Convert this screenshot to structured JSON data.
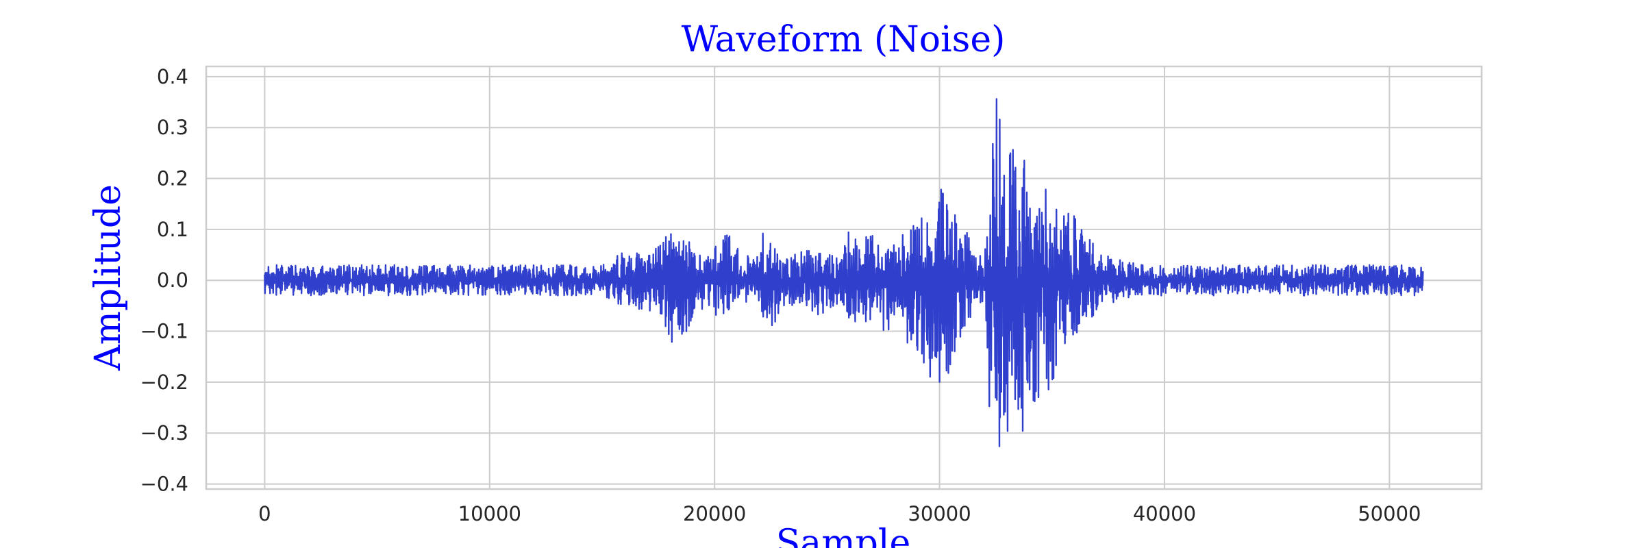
{
  "chart_data": {
    "type": "line",
    "title": "Waveform (Noise)",
    "xlabel": "Sample",
    "ylabel": "Amplitude",
    "xlim": [
      -2600,
      54100
    ],
    "ylim": [
      -0.41,
      0.42
    ],
    "xticks": [
      0,
      10000,
      20000,
      30000,
      40000,
      50000
    ],
    "xtick_labels": [
      "0",
      "10000",
      "20000",
      "30000",
      "40000",
      "50000"
    ],
    "yticks": [
      -0.4,
      -0.3,
      -0.2,
      -0.1,
      0.0,
      0.1,
      0.2,
      0.3,
      0.4
    ],
    "ytick_labels": [
      "−0.4",
      "−0.3",
      "−0.2",
      "−0.1",
      "0.0",
      "0.1",
      "0.2",
      "0.3",
      "0.4"
    ],
    "grid": true,
    "series": [
      {
        "color": "#3040cc",
        "num_samples": 51500,
        "envelope": {
          "x": [
            0,
            2000,
            5000,
            10000,
            15000,
            15800,
            17000,
            17600,
            18000,
            18600,
            19000,
            19600,
            20000,
            20200,
            21000,
            21800,
            22200,
            22600,
            23000,
            24000,
            25000,
            25600,
            26000,
            27000,
            27600,
            28000,
            29000,
            29600,
            30000,
            30400,
            31000,
            31600,
            32000,
            32200,
            32500,
            33000,
            33500,
            34000,
            34500,
            35000,
            35500,
            36000,
            36500,
            37000,
            38000,
            39000,
            40000,
            45000,
            50000,
            51500
          ],
          "upper": [
            0.03,
            0.03,
            0.03,
            0.03,
            0.03,
            0.06,
            0.05,
            0.07,
            0.1,
            0.1,
            0.07,
            0.04,
            0.07,
            0.11,
            0.08,
            0.04,
            0.11,
            0.07,
            0.04,
            0.06,
            0.05,
            0.05,
            0.1,
            0.09,
            0.07,
            0.08,
            0.12,
            0.13,
            0.19,
            0.14,
            0.12,
            0.06,
            0.04,
            0.2,
            0.38,
            0.28,
            0.28,
            0.24,
            0.24,
            0.17,
            0.17,
            0.13,
            0.1,
            0.06,
            0.04,
            0.03,
            0.03,
            0.03,
            0.03,
            0.03
          ],
          "lower": [
            -0.03,
            -0.03,
            -0.03,
            -0.03,
            -0.03,
            -0.05,
            -0.06,
            -0.08,
            -0.12,
            -0.13,
            -0.08,
            -0.05,
            -0.07,
            -0.07,
            -0.06,
            -0.04,
            -0.13,
            -0.1,
            -0.05,
            -0.05,
            -0.08,
            -0.08,
            -0.09,
            -0.1,
            -0.1,
            -0.1,
            -0.14,
            -0.2,
            -0.22,
            -0.2,
            -0.11,
            -0.06,
            -0.04,
            -0.25,
            -0.35,
            -0.37,
            -0.32,
            -0.26,
            -0.25,
            -0.23,
            -0.15,
            -0.11,
            -0.09,
            -0.06,
            -0.04,
            -0.03,
            -0.03,
            -0.03,
            -0.03,
            -0.03
          ]
        }
      }
    ]
  }
}
